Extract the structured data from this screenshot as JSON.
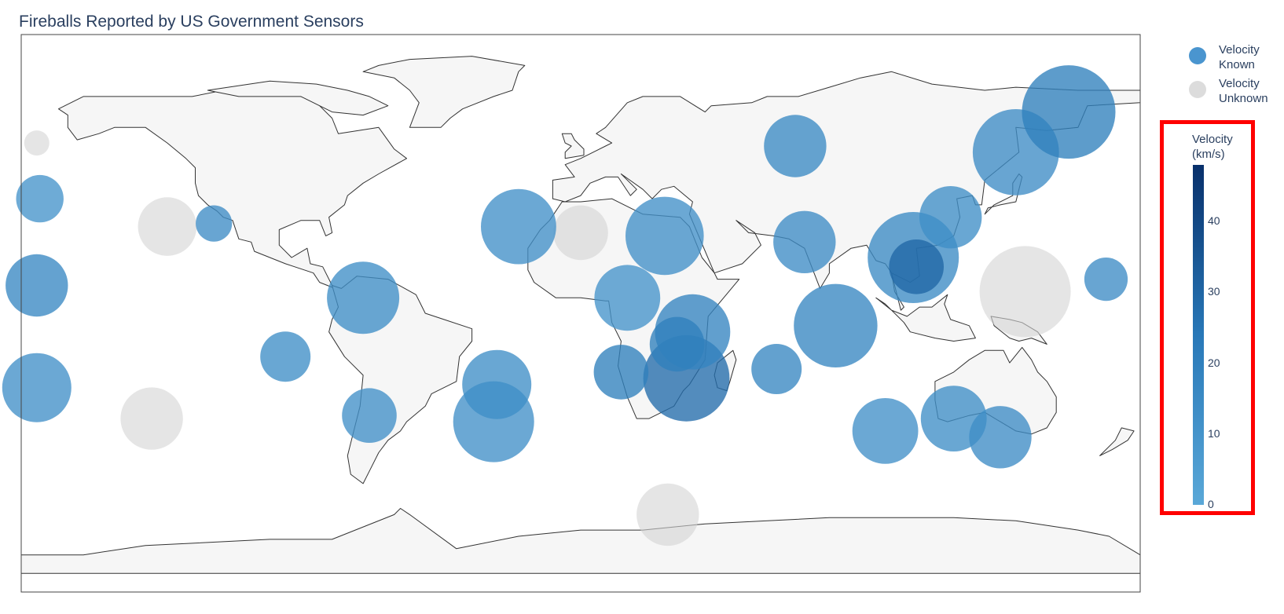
{
  "chart_data": {
    "type": "scatter",
    "subtype": "geo-bubble",
    "title": "Fireballs Reported by US Government Sensors",
    "projection": "equirectangular",
    "lon_range": [
      -180,
      180
    ],
    "lat_range": [
      -90,
      90
    ],
    "colors": {
      "ocean": "#ffffff",
      "land": "#f6f6f6",
      "coastline": "#333333",
      "frame": "#444444",
      "unknown": "#d3d3d3",
      "known_low": "#5aa8d8",
      "known_mid": "#2878b8",
      "known_high": "#08306b",
      "highlight_box": "#ff0000"
    },
    "legend": {
      "placement": "right-top",
      "entries": [
        {
          "name": "Velocity\nKnown",
          "color": "#4a95cf"
        },
        {
          "name": "Velocity\nUnknown",
          "color": "#dcdcdc"
        }
      ]
    },
    "colorbar": {
      "title": "Velocity\n(km/s)",
      "range": [
        0,
        48
      ],
      "ticks": [
        {
          "value": 0,
          "label": "0"
        },
        {
          "value": 10,
          "label": "10"
        },
        {
          "value": 20,
          "label": "20"
        },
        {
          "value": 30,
          "label": "30"
        },
        {
          "value": 40,
          "label": "40"
        }
      ]
    },
    "series": [
      {
        "name": "Velocity Known",
        "points": [
          {
            "lon": 107,
            "lat": 18,
            "energy": 90,
            "velocity": 15
          },
          {
            "lon": 140,
            "lat": 52,
            "energy": 80,
            "velocity": 14
          },
          {
            "lon": -28,
            "lat": -35,
            "energy": 70,
            "velocity": 12
          },
          {
            "lon": 82,
            "lat": -4,
            "energy": 75,
            "velocity": 17
          },
          {
            "lon": 157,
            "lat": 65,
            "energy": 95,
            "velocity": 20
          },
          {
            "lon": 34,
            "lat": -21,
            "energy": 80,
            "velocity": 28
          },
          {
            "lon": 36,
            "lat": -6,
            "energy": 60,
            "velocity": 18
          },
          {
            "lon": -20,
            "lat": 28,
            "energy": 60,
            "velocity": 12
          },
          {
            "lon": -70,
            "lat": 5,
            "energy": 55,
            "velocity": 13
          },
          {
            "lon": 27,
            "lat": 25,
            "energy": 65,
            "velocity": 12
          },
          {
            "lon": 15,
            "lat": 5,
            "energy": 45,
            "velocity": 10
          },
          {
            "lon": -27,
            "lat": -23,
            "energy": 50,
            "velocity": 13
          },
          {
            "lon": 108,
            "lat": 15,
            "energy": 30,
            "velocity": 30
          },
          {
            "lon": 13,
            "lat": -19,
            "energy": 30,
            "velocity": 20
          },
          {
            "lon": -175,
            "lat": -24,
            "energy": 50,
            "velocity": 12
          },
          {
            "lon": -175,
            "lat": 9,
            "energy": 40,
            "velocity": 16
          },
          {
            "lon": 98,
            "lat": -38,
            "energy": 45,
            "velocity": 12
          },
          {
            "lon": 135,
            "lat": -40,
            "energy": 40,
            "velocity": 14
          },
          {
            "lon": 120,
            "lat": -34,
            "energy": 45,
            "velocity": 13
          },
          {
            "lon": 72,
            "lat": 23,
            "energy": 40,
            "velocity": 14
          },
          {
            "lon": 69,
            "lat": 54,
            "energy": 40,
            "velocity": 15
          },
          {
            "lon": 119,
            "lat": 31,
            "energy": 40,
            "velocity": 13
          },
          {
            "lon": -95,
            "lat": -14,
            "energy": 25,
            "velocity": 13
          },
          {
            "lon": 63,
            "lat": -18,
            "energy": 25,
            "velocity": 17
          },
          {
            "lon": 31,
            "lat": -10,
            "energy": 30,
            "velocity": 20
          },
          {
            "lon": -68,
            "lat": -33,
            "energy": 30,
            "velocity": 12
          },
          {
            "lon": -174,
            "lat": 37,
            "energy": 22,
            "velocity": 10
          },
          {
            "lon": -118,
            "lat": 29,
            "energy": 12,
            "velocity": 14
          },
          {
            "lon": 169,
            "lat": 11,
            "energy": 18,
            "velocity": 14
          }
        ]
      },
      {
        "name": "Velocity Unknown",
        "points": [
          {
            "lon": 143,
            "lat": 7,
            "energy": 90,
            "velocity": null
          },
          {
            "lon": -138,
            "lat": -34,
            "energy": 40,
            "velocity": null
          },
          {
            "lon": -133,
            "lat": 28,
            "energy": 35,
            "velocity": null
          },
          {
            "lon": 28,
            "lat": -65,
            "energy": 40,
            "velocity": null
          },
          {
            "lon": 0,
            "lat": 26,
            "energy": 30,
            "velocity": null
          },
          {
            "lon": -175,
            "lat": 55,
            "energy": 5,
            "velocity": null
          }
        ]
      }
    ]
  }
}
